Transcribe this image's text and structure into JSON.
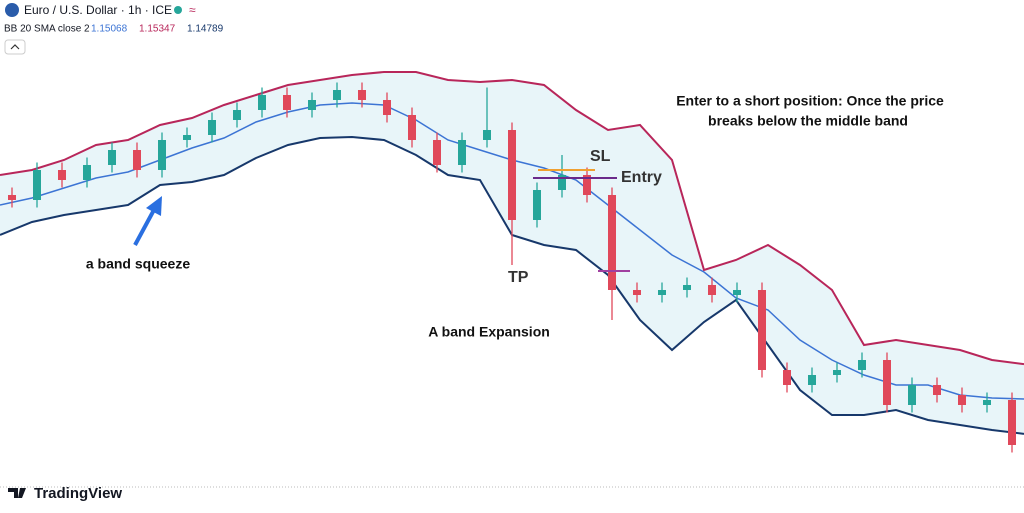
{
  "header": {
    "symbol": "Euro / U.S. Dollar · 1h · ICE",
    "indicator": "BB 20 SMA close 2",
    "basis": "1.15068",
    "upper": "1.15347",
    "lower": "1.14789",
    "brand": "TradingView"
  },
  "chart_data": {
    "type": "candlestick",
    "ylim": [
      1.1438,
      1.1778
    ],
    "colors": {
      "up": "#26a69a",
      "down": "#e0485a",
      "upper": "#b8265a",
      "basis": "#3c74d4",
      "lower": "#17386b",
      "fill": "#e8f5f9"
    },
    "open": [
      1.167,
      1.1666,
      1.169,
      1.1682,
      1.1694,
      1.1706,
      1.169,
      1.1714,
      1.1718,
      1.173,
      1.1738,
      1.175,
      1.1738,
      1.1746,
      1.1754,
      1.1746,
      1.1734,
      1.1714,
      1.1694,
      1.1714,
      1.1722,
      1.165,
      1.1674,
      1.1686,
      1.167,
      1.1594,
      1.159,
      1.1594,
      1.1598,
      1.159,
      1.1594,
      1.153,
      1.1518,
      1.1526,
      1.153,
      1.1538,
      1.1502,
      1.1518,
      1.151,
      1.1502,
      1.1506
    ],
    "high": [
      1.1676,
      1.1696,
      1.1696,
      1.17,
      1.1712,
      1.1712,
      1.172,
      1.1724,
      1.1736,
      1.1744,
      1.1756,
      1.1756,
      1.1752,
      1.176,
      1.176,
      1.1752,
      1.174,
      1.172,
      1.172,
      1.1756,
      1.1728,
      1.168,
      1.1702,
      1.1692,
      1.1676,
      1.16,
      1.16,
      1.1604,
      1.1604,
      1.16,
      1.16,
      1.1536,
      1.1532,
      1.1536,
      1.1544,
      1.1544,
      1.1524,
      1.1524,
      1.1516,
      1.1512,
      1.1512
    ],
    "low": [
      1.166,
      1.166,
      1.1676,
      1.1676,
      1.1688,
      1.1684,
      1.1684,
      1.1708,
      1.1712,
      1.1724,
      1.1732,
      1.1732,
      1.1732,
      1.174,
      1.174,
      1.1728,
      1.1708,
      1.1688,
      1.1688,
      1.1708,
      1.1614,
      1.1644,
      1.1668,
      1.1664,
      1.157,
      1.1584,
      1.1584,
      1.1588,
      1.1584,
      1.1584,
      1.1524,
      1.1512,
      1.1512,
      1.152,
      1.1524,
      1.1496,
      1.1496,
      1.1504,
      1.1496,
      1.1496,
      1.1464
    ],
    "close": [
      1.1666,
      1.169,
      1.1682,
      1.1694,
      1.1706,
      1.169,
      1.1714,
      1.1718,
      1.173,
      1.1738,
      1.175,
      1.1738,
      1.1746,
      1.1754,
      1.1746,
      1.1734,
      1.1714,
      1.1694,
      1.1714,
      1.1722,
      1.165,
      1.1674,
      1.1686,
      1.167,
      1.1594,
      1.159,
      1.1594,
      1.1598,
      1.159,
      1.1594,
      1.153,
      1.1518,
      1.1526,
      1.153,
      1.1538,
      1.1502,
      1.1518,
      1.151,
      1.1502,
      1.1506,
      1.147
    ],
    "bands": {
      "upper": [
        1.1686,
        1.169,
        1.1698,
        1.171,
        1.1714,
        1.1726,
        1.17316,
        1.1742,
        1.175,
        1.1758,
        1.1762,
        1.1766,
        1.17684,
        1.17684,
        1.1762,
        1.17604,
        1.1762,
        1.1758,
        1.1738,
        1.1722,
        1.1726,
        1.1698,
        1.161,
        1.1618,
        1.163,
        1.1614,
        1.1594,
        1.155,
        1.1554,
        1.155,
        1.1546,
        1.1538,
        1.15347
      ],
      "basis": [
        1.1662,
        1.16676,
        1.16756,
        1.16836,
        1.16884,
        1.1698,
        1.17076,
        1.17156,
        1.17284,
        1.17364,
        1.1742,
        1.17436,
        1.1742,
        1.173,
        1.1714,
        1.1706,
        1.1698,
        1.16916,
        1.1682,
        1.1662,
        1.1642,
        1.1622,
        1.16084,
        1.15876,
        1.1578,
        1.1554,
        1.1538,
        1.1526,
        1.1518,
        1.1518,
        1.151,
        1.15076,
        1.15068
      ],
      "lower": [
        1.1638,
        1.16484,
        1.1654,
        1.1658,
        1.1662,
        1.1678,
        1.16804,
        1.1686,
        1.16996,
        1.171,
        1.17156,
        1.17164,
        1.1714,
        1.1702,
        1.1686,
        1.1682,
        1.1638,
        1.163,
        1.1626,
        1.1606,
        1.157,
        1.1546,
        1.15684,
        1.1586,
        1.155,
        1.1514,
        1.1494,
        1.1494,
        1.1498,
        1.149,
        1.1486,
        1.1482,
        1.14789
      ]
    },
    "annotations": {
      "note_line1": "Enter to a short position: Once the price",
      "note_line2": "breaks below the middle band",
      "squeeze": "a band squeeze",
      "expansion": "A band Expansion",
      "sl": "SL",
      "entry": "Entry",
      "tp": "TP"
    }
  }
}
